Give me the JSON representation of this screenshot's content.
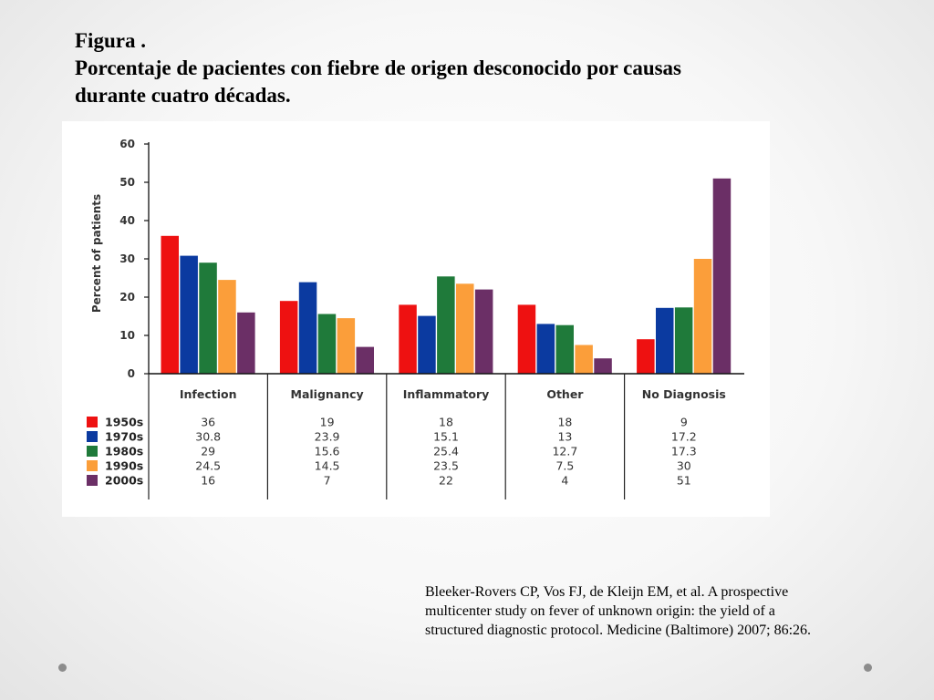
{
  "slide": {
    "title_line1": "Figura .",
    "title_line2": "Porcentaje de pacientes con fiebre de origen desconocido por causas",
    "title_line3": "durante cuatro décadas.",
    "citation_line1": "Bleeker-Rovers CP, Vos FJ, de Kleijn EM, et al. A prospective",
    "citation_line2": "multicenter study on fever of unknown origin: the yield of a",
    "citation_line3": "structured diagnostic protocol. Medicine (Baltimore) 2007; 86:26."
  },
  "chart_data": {
    "type": "bar",
    "ylabel": "Percent of patients",
    "ylim": [
      0,
      60
    ],
    "yticks": [
      0,
      10,
      20,
      30,
      40,
      50,
      60
    ],
    "categories": [
      "Infection",
      "Malignancy",
      "Inflammatory",
      "Other",
      "No Diagnosis"
    ],
    "series": [
      {
        "name": "1950s",
        "color": "#ee1111",
        "values": [
          36,
          19,
          18,
          18,
          9
        ],
        "labels": [
          "36",
          "19",
          "18",
          "18",
          "9"
        ]
      },
      {
        "name": "1970s",
        "color": "#0b3aa0",
        "values": [
          30.8,
          23.9,
          15.1,
          13,
          17.2
        ],
        "labels": [
          "30.8",
          "23.9",
          "15.1",
          "13",
          "17.2"
        ]
      },
      {
        "name": "1980s",
        "color": "#1f7a3a",
        "values": [
          29,
          15.6,
          25.4,
          12.7,
          17.3
        ],
        "labels": [
          "29",
          "15.6",
          "25.4",
          "12.7",
          "17.3"
        ]
      },
      {
        "name": "1990s",
        "color": "#fb9e3a",
        "values": [
          24.5,
          14.5,
          23.5,
          7.5,
          30
        ],
        "labels": [
          "24.5",
          "14.5",
          "23.5",
          "7.5",
          "30"
        ]
      },
      {
        "name": "2000s",
        "color": "#6b2f66",
        "values": [
          16,
          7,
          22,
          4,
          51
        ],
        "labels": [
          "16",
          "7",
          "22",
          "4",
          "51"
        ]
      }
    ],
    "grid": false,
    "legend": "table below chart"
  }
}
